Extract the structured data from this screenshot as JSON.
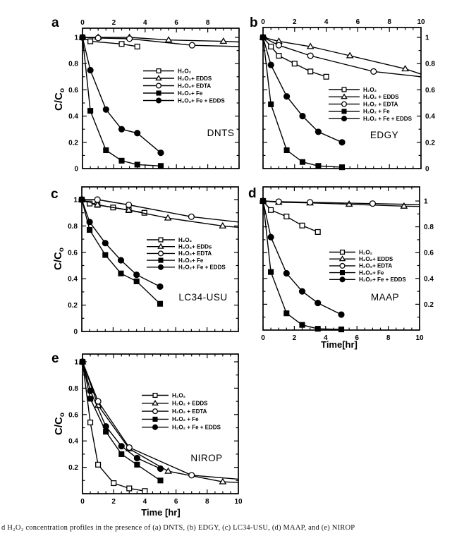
{
  "figure": {
    "background": "#ffffff",
    "ink": "#000000",
    "caption_visible": "d H₂O₂ concentration profiles in the presence of (a) DNTS, (b) EDGY, (c) LC34-USU, (d) MAAP, and (e) NIROP"
  },
  "chart_data": [
    {
      "type": "line",
      "panel_letter": "a",
      "compound": "DNTS",
      "x_axis": {
        "label": "",
        "range": [
          0,
          10
        ],
        "tick_values": [
          0,
          2,
          4,
          6,
          8
        ],
        "tick_labels": [
          "0",
          "2",
          "4",
          "6",
          "8"
        ],
        "label_side": "top"
      },
      "y_axis": {
        "label_main": "C/C",
        "label_sub": "o",
        "range": [
          0,
          1.07
        ],
        "tick_values": [
          1,
          0.8,
          0.6,
          0.4,
          0.2,
          0
        ],
        "tick_labels": [
          "1",
          "0.8",
          "0.6",
          "0.4",
          "0.2",
          "0"
        ],
        "label_side": "left"
      },
      "series": [
        {
          "key": "h2o2",
          "name": "H₂O₂",
          "marker": "open-square",
          "points": [
            [
              0,
              1
            ],
            [
              0.5,
              0.97
            ],
            [
              2.5,
              0.95
            ],
            [
              3.5,
              0.93
            ]
          ]
        },
        {
          "key": "h2o2-edds",
          "name": "H₂O₂+ EDDS",
          "marker": "open-triangle",
          "points": [
            [
              0,
              1
            ],
            [
              1,
              1.0
            ],
            [
              3,
              1.0
            ],
            [
              5.5,
              0.98
            ],
            [
              9,
              0.97
            ]
          ],
          "extend": [
            10,
            0.965
          ]
        },
        {
          "key": "h2o2-edta",
          "name": "H₂O₂+ EDTA",
          "marker": "open-circle",
          "points": [
            [
              0,
              1
            ],
            [
              1,
              0.995
            ],
            [
              3,
              0.99
            ],
            [
              7,
              0.94
            ]
          ],
          "extend": [
            10,
            0.93
          ]
        },
        {
          "key": "h2o2-fe",
          "name": "H₂O₂+ Fe",
          "marker": "filled-square",
          "points": [
            [
              0,
              1
            ],
            [
              0.5,
              0.44
            ],
            [
              1.5,
              0.14
            ],
            [
              2.5,
              0.06
            ],
            [
              3.5,
              0.03
            ],
            [
              5,
              0.02
            ]
          ]
        },
        {
          "key": "h2o2-fe-edds",
          "name": "H₂O₂+ Fe + EDDS",
          "marker": "filled-circle",
          "points": [
            [
              0,
              1
            ],
            [
              0.5,
              0.75
            ],
            [
              1.5,
              0.45
            ],
            [
              2.5,
              0.3
            ],
            [
              3.5,
              0.27
            ],
            [
              5,
              0.12
            ]
          ]
        }
      ]
    },
    {
      "type": "line",
      "panel_letter": "b",
      "compound": "EDGY",
      "x_axis": {
        "label": "",
        "range": [
          0,
          10
        ],
        "tick_values": [
          0,
          2,
          4,
          6,
          8,
          10
        ],
        "tick_labels": [
          "0",
          "2",
          "4",
          "6",
          "8",
          "10"
        ],
        "label_side": "top"
      },
      "y_axis": {
        "label_main": "",
        "label_sub": "",
        "range": [
          0,
          1.07
        ],
        "tick_values": [
          1,
          0.8,
          0.6,
          0.4,
          0.2,
          0
        ],
        "tick_labels": [
          "1",
          "0.8",
          "0.6",
          "0.4",
          "0.2",
          "0"
        ],
        "label_side": "right"
      },
      "series": [
        {
          "key": "h2o2",
          "name": "H₂O₂",
          "marker": "open-square",
          "points": [
            [
              0,
              1
            ],
            [
              0.5,
              0.93
            ],
            [
              1,
              0.86
            ],
            [
              2,
              0.8
            ],
            [
              3,
              0.74
            ],
            [
              4,
              0.7
            ]
          ]
        },
        {
          "key": "h2o2-edds",
          "name": "H₂O₂ + EDDS",
          "marker": "open-triangle",
          "points": [
            [
              0,
              1
            ],
            [
              1,
              0.97
            ],
            [
              3,
              0.93
            ],
            [
              5.5,
              0.86
            ],
            [
              9,
              0.76
            ]
          ],
          "extend": [
            10,
            0.72
          ]
        },
        {
          "key": "h2o2-edta",
          "name": "H₂O₂ + EDTA",
          "marker": "open-circle",
          "points": [
            [
              0,
              1
            ],
            [
              1,
              0.94
            ],
            [
              3,
              0.86
            ],
            [
              7,
              0.74
            ]
          ],
          "extend": [
            10,
            0.7
          ]
        },
        {
          "key": "h2o2-fe",
          "name": "H₂O₂ + Fe",
          "marker": "filled-square",
          "points": [
            [
              0,
              1
            ],
            [
              0.5,
              0.49
            ],
            [
              1.5,
              0.14
            ],
            [
              2.5,
              0.05
            ],
            [
              3.5,
              0.02
            ],
            [
              5,
              0.01
            ]
          ]
        },
        {
          "key": "h2o2-fe-edds",
          "name": "H₂O₂ + Fe + EDDS",
          "marker": "filled-circle",
          "points": [
            [
              0,
              1
            ],
            [
              0.5,
              0.79
            ],
            [
              1.5,
              0.55
            ],
            [
              2.5,
              0.4
            ],
            [
              3.5,
              0.28
            ],
            [
              5,
              0.2
            ]
          ]
        }
      ]
    },
    {
      "type": "line",
      "panel_letter": "c",
      "compound": "LC34-USU",
      "x_axis": {
        "label": "",
        "range": [
          0,
          10
        ],
        "tick_values": [],
        "tick_labels": [],
        "label_side": "none"
      },
      "y_axis": {
        "label_main": "C/C",
        "label_sub": "o",
        "range": [
          0,
          1.1
        ],
        "tick_values": [
          1,
          0.8,
          0.6,
          0.4,
          0.2,
          0
        ],
        "tick_labels": [
          "1",
          "0.8",
          "0.6",
          "0.4",
          "0.2",
          "0"
        ],
        "label_side": "left"
      },
      "series": [
        {
          "key": "h2o2",
          "name": "H₂O₂",
          "marker": "open-square",
          "points": [
            [
              0,
              1
            ],
            [
              0.5,
              0.97
            ],
            [
              1,
              0.96
            ],
            [
              2,
              0.94
            ],
            [
              3,
              0.92
            ],
            [
              4,
              0.9
            ]
          ]
        },
        {
          "key": "h2o2-edds",
          "name": "H₂O₂+ EDDs",
          "marker": "open-triangle",
          "points": [
            [
              0,
              1
            ],
            [
              1,
              0.96
            ],
            [
              3,
              0.92
            ],
            [
              5.5,
              0.86
            ],
            [
              9,
              0.8
            ]
          ],
          "extend": [
            10,
            0.79
          ]
        },
        {
          "key": "h2o2-edta",
          "name": "H₂O₂+ EDTA",
          "marker": "open-circle",
          "points": [
            [
              0,
              1
            ],
            [
              1,
              1.0
            ],
            [
              3,
              0.96
            ],
            [
              7,
              0.87
            ]
          ],
          "extend": [
            10,
            0.83
          ]
        },
        {
          "key": "h2o2-fe",
          "name": "H₂O₂+ Fe",
          "marker": "filled-square",
          "points": [
            [
              0,
              1
            ],
            [
              0.5,
              0.77
            ],
            [
              1.5,
              0.58
            ],
            [
              2.5,
              0.44
            ],
            [
              3.5,
              0.38
            ],
            [
              5,
              0.21
            ]
          ]
        },
        {
          "key": "h2o2-fe-edds",
          "name": "H₂O₂+ Fe + EDDS",
          "marker": "filled-circle",
          "points": [
            [
              0,
              1
            ],
            [
              0.5,
              0.83
            ],
            [
              1.5,
              0.67
            ],
            [
              2.5,
              0.54
            ],
            [
              3.5,
              0.43
            ],
            [
              5,
              0.34
            ]
          ]
        }
      ]
    },
    {
      "type": "line",
      "panel_letter": "d",
      "compound": "MAAP",
      "x_axis": {
        "label": "Time[hr]",
        "range": [
          0,
          10
        ],
        "tick_values": [
          0,
          2,
          4,
          6,
          8,
          10
        ],
        "tick_labels": [
          "0",
          "2",
          "4",
          "6",
          "8",
          "10"
        ],
        "label_side": "bottom"
      },
      "y_axis": {
        "label_main": "",
        "label_sub": "",
        "range": [
          0,
          1.1
        ],
        "tick_values": [
          1,
          0.8,
          0.6,
          0.4,
          0.2
        ],
        "tick_labels": [
          "1",
          "0.8",
          "0.6",
          "0.4",
          "0.2"
        ],
        "label_side": "right"
      },
      "series": [
        {
          "key": "h2o2",
          "name": "H₂O₂",
          "marker": "open-square",
          "points": [
            [
              0,
              1
            ],
            [
              0.5,
              0.93
            ],
            [
              1.5,
              0.88
            ],
            [
              2.5,
              0.81
            ],
            [
              3.5,
              0.76
            ]
          ]
        },
        {
          "key": "h2o2-edds",
          "name": "H₂O₂+ EDDS",
          "marker": "open-triangle",
          "points": [
            [
              0,
              1
            ],
            [
              1,
              0.99
            ],
            [
              3,
              0.985
            ],
            [
              5.5,
              0.975
            ],
            [
              9,
              0.96
            ]
          ],
          "extend": [
            10,
            0.958
          ]
        },
        {
          "key": "h2o2-edta",
          "name": "H₂O₂+ EDTA",
          "marker": "open-circle",
          "points": [
            [
              0,
              1
            ],
            [
              1,
              0.995
            ],
            [
              3,
              0.99
            ],
            [
              7,
              0.98
            ]
          ],
          "extend": [
            10,
            0.972
          ]
        },
        {
          "key": "h2o2-fe",
          "name": "H₂O₂+ Fe",
          "marker": "filled-square",
          "points": [
            [
              0,
              1
            ],
            [
              0.5,
              0.45
            ],
            [
              1.5,
              0.13
            ],
            [
              2.5,
              0.04
            ],
            [
              3.5,
              0.01
            ],
            [
              5,
              0.005
            ]
          ]
        },
        {
          "key": "h2o2-fe-edds",
          "name": "H₂O₂+ Fe + EDDS",
          "marker": "filled-circle",
          "points": [
            [
              0,
              1
            ],
            [
              0.5,
              0.72
            ],
            [
              1.5,
              0.44
            ],
            [
              2.5,
              0.3
            ],
            [
              3.5,
              0.21
            ],
            [
              5,
              0.12
            ]
          ]
        }
      ]
    },
    {
      "type": "line",
      "panel_letter": "e",
      "compound": "NIROP",
      "x_axis": {
        "label": "Time [hr]",
        "range": [
          0,
          10
        ],
        "tick_values": [
          0,
          2,
          4,
          6,
          8,
          10
        ],
        "tick_labels": [
          "0",
          "2",
          "4",
          "6",
          "8",
          "10"
        ],
        "label_side": "bottom"
      },
      "y_axis": {
        "label_main": "C/C",
        "label_sub": "o",
        "range": [
          0,
          1.06
        ],
        "tick_values": [
          1,
          0.8,
          0.6,
          0.4,
          0.2
        ],
        "tick_labels": [
          "1",
          "0.8",
          "0.6",
          "0.4",
          "0.2"
        ],
        "label_side": "left"
      },
      "series": [
        {
          "key": "h2o2",
          "name": "H₂O₂",
          "marker": "open-square",
          "points": [
            [
              0,
              1
            ],
            [
              0.5,
              0.54
            ],
            [
              1,
              0.22
            ],
            [
              2,
              0.08
            ],
            [
              3,
              0.04
            ],
            [
              4,
              0.02
            ]
          ]
        },
        {
          "key": "h2o2-edds",
          "name": "H₂O₂ + EDDS",
          "marker": "open-triangle",
          "points": [
            [
              0,
              1
            ],
            [
              1,
              0.67
            ],
            [
              3,
              0.34
            ],
            [
              5.5,
              0.17
            ],
            [
              9,
              0.09
            ]
          ],
          "extend": [
            10,
            0.085
          ]
        },
        {
          "key": "h2o2-edta",
          "name": "H₂O₂ + EDTA",
          "marker": "open-circle",
          "points": [
            [
              0,
              1
            ],
            [
              1,
              0.7
            ],
            [
              3,
              0.35
            ],
            [
              7,
              0.14
            ]
          ],
          "extend": [
            10,
            0.11
          ]
        },
        {
          "key": "h2o2-fe",
          "name": "H₂O₂ + Fe",
          "marker": "filled-square",
          "points": [
            [
              0,
              1
            ],
            [
              0.5,
              0.72
            ],
            [
              1.5,
              0.47
            ],
            [
              2.5,
              0.3
            ],
            [
              3.5,
              0.22
            ],
            [
              5,
              0.1
            ]
          ]
        },
        {
          "key": "h2o2-fe-edds",
          "name": "H₂O₂ + Fe + EDDS",
          "marker": "filled-circle",
          "points": [
            [
              0,
              1
            ],
            [
              0.5,
              0.78
            ],
            [
              1.5,
              0.51
            ],
            [
              2.5,
              0.36
            ],
            [
              3.5,
              0.27
            ],
            [
              5,
              0.19
            ]
          ]
        }
      ]
    }
  ]
}
